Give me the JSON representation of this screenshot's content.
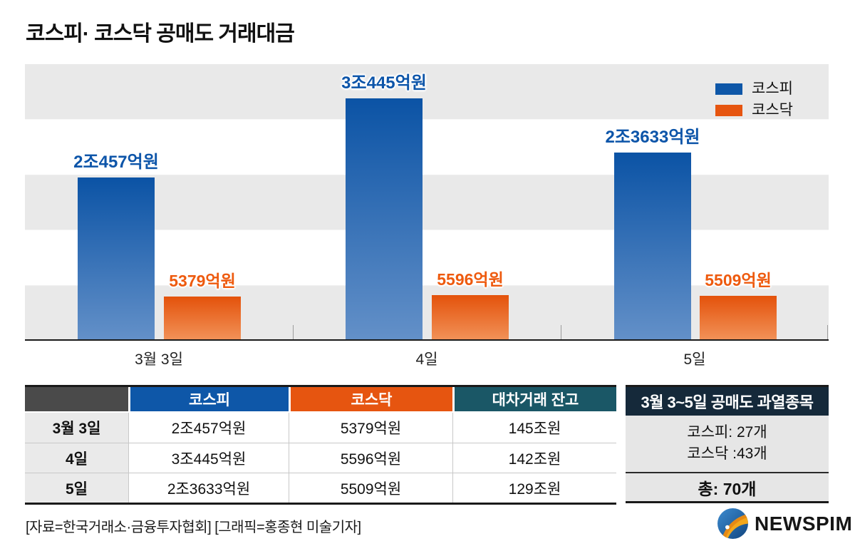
{
  "title": "코스피· 코스닥 공매도 거래대금",
  "colors": {
    "kospi": "#0e57a8",
    "kospi_dark": "#0b53a5",
    "kospi_light": "#6390c8",
    "kosdaq": "#e65510",
    "kosdaq_dark": "#e4520b",
    "kosdaq_light": "#f19157",
    "teal": "#1a5766",
    "navy": "#15293a",
    "header_gray": "#4a4a4a",
    "stripe": "#e9e9e9",
    "label_blue": "#0d55a9",
    "label_orange": "#ee5a0e"
  },
  "chart_data": {
    "type": "bar",
    "title": "코스피· 코스닥 공매도 거래대금",
    "categories": [
      "3월 3일",
      "4일",
      "5일"
    ],
    "series": [
      {
        "key": "kospi",
        "name": "코스피",
        "values": [
          20457,
          30445,
          23633
        ],
        "labels": [
          "2조457억원",
          "3조445억원",
          "2조3633억원"
        ]
      },
      {
        "key": "kosdaq",
        "name": "코스닥",
        "values": [
          5379,
          5596,
          5509
        ],
        "labels": [
          "5379억원",
          "5596억원",
          "5509억원"
        ]
      }
    ],
    "unit": "억원",
    "ylim": [
      0,
      35000
    ],
    "xlabel": "",
    "ylabel": "",
    "grid": "horizontal-bands",
    "legend_position": "top-right"
  },
  "table": {
    "headers": [
      "",
      "코스피",
      "코스닥",
      "대차거래 잔고"
    ],
    "rows": [
      {
        "label": "3월 3일",
        "kospi": "2조457억원",
        "kosdaq": "5379억원",
        "balance": "145조원"
      },
      {
        "label": "4일",
        "kospi": "3조445억원",
        "kosdaq": "5596억원",
        "balance": "142조원"
      },
      {
        "label": "5일",
        "kospi": "2조3633억원",
        "kosdaq": "5509억원",
        "balance": "129조원"
      }
    ]
  },
  "summary_box": {
    "title": "3월 3~5일 공매도 과열종목",
    "lines": [
      "코스피: 27개",
      "코스닥 :43개"
    ],
    "total": "총: 70개"
  },
  "footer": {
    "credit": "[자료=한국거래소·금융투자협회] [그래픽=홍종현 미술기자]",
    "logo": "NEWSPIM"
  }
}
